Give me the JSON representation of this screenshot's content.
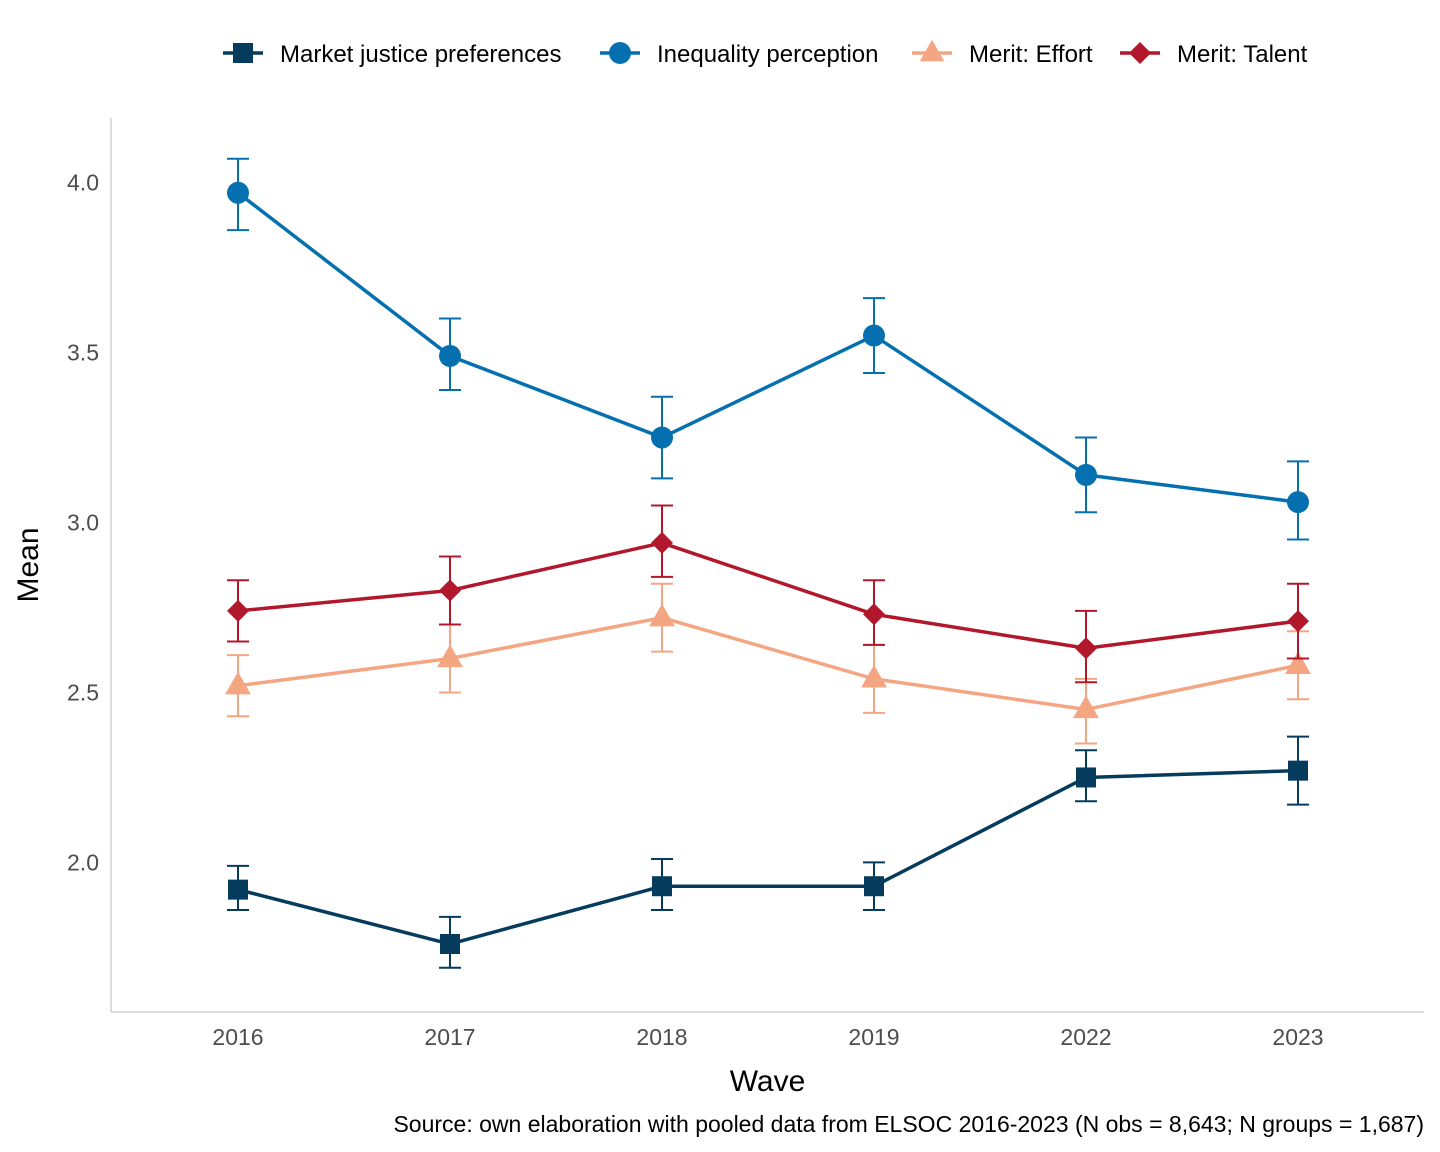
{
  "chart_data": {
    "type": "line",
    "categories": [
      "2016",
      "2017",
      "2018",
      "2019",
      "2022",
      "2023"
    ],
    "xlabel": "Wave",
    "ylabel": "Mean",
    "ylim": [
      1.56,
      4.19
    ],
    "yticks": [
      "2.0",
      "2.5",
      "3.0",
      "3.5",
      "4.0"
    ],
    "grid": false,
    "legend_position": "top",
    "caption": "Source: own elaboration with pooled data from ELSOC 2016-2023 (N obs = 8,643; N groups = 1,687)",
    "series": [
      {
        "name": "Market justice preferences",
        "color": "#053b5c",
        "marker": "square",
        "values": [
          1.92,
          1.76,
          1.93,
          1.93,
          2.25,
          2.27
        ],
        "lower": [
          1.86,
          1.69,
          1.86,
          1.86,
          2.18,
          2.17
        ],
        "upper": [
          1.99,
          1.84,
          2.01,
          2.0,
          2.33,
          2.37
        ]
      },
      {
        "name": "Inequality perception",
        "color": "#0570b0",
        "marker": "circle",
        "values": [
          3.97,
          3.49,
          3.25,
          3.55,
          3.14,
          3.06
        ],
        "lower": [
          3.86,
          3.39,
          3.13,
          3.44,
          3.03,
          2.95
        ],
        "upper": [
          4.07,
          3.6,
          3.37,
          3.66,
          3.25,
          3.18
        ]
      },
      {
        "name": "Merit: Effort",
        "color": "#f4a582",
        "marker": "triangle",
        "values": [
          2.52,
          2.6,
          2.72,
          2.54,
          2.45,
          2.58
        ],
        "lower": [
          2.43,
          2.5,
          2.62,
          2.44,
          2.35,
          2.48
        ],
        "upper": [
          2.61,
          2.7,
          2.82,
          2.64,
          2.54,
          2.68
        ]
      },
      {
        "name": "Merit: Talent",
        "color": "#b2182b",
        "marker": "diamond",
        "values": [
          2.74,
          2.8,
          2.94,
          2.73,
          2.63,
          2.71
        ],
        "lower": [
          2.65,
          2.7,
          2.84,
          2.64,
          2.53,
          2.6
        ],
        "upper": [
          2.83,
          2.9,
          3.05,
          2.83,
          2.74,
          2.82
        ]
      }
    ]
  }
}
